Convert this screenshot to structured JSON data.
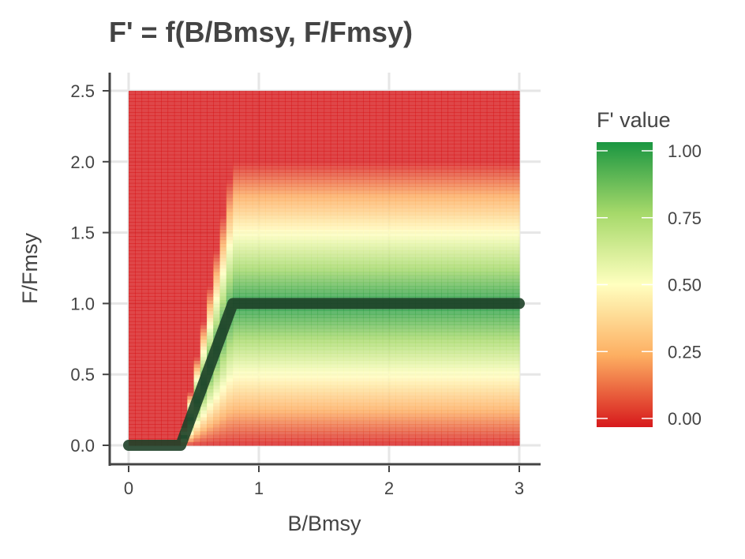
{
  "chart_data": {
    "type": "heatmap",
    "title": "F' = f(B/Bmsy, F/Fmsy)",
    "xlabel": "B/Bmsy",
    "ylabel": "F/Fmsy",
    "xlim": [
      0,
      3
    ],
    "ylim": [
      0,
      2.5
    ],
    "x_ticks": [
      "0",
      "1",
      "2",
      "3"
    ],
    "x_tick_values": [
      0,
      1,
      2,
      3
    ],
    "y_ticks": [
      "0.0",
      "0.5",
      "1.0",
      "1.5",
      "2.0",
      "2.5"
    ],
    "y_tick_values": [
      0,
      0.5,
      1,
      1.5,
      2,
      2.5
    ],
    "grid": true,
    "fill_value": "F' value",
    "legend": {
      "title": "F' value",
      "position": "right",
      "ticks": [
        "0.00",
        "0.25",
        "0.50",
        "0.75",
        "1.00"
      ],
      "tick_values": [
        0,
        0.25,
        0.5,
        0.75,
        1
      ],
      "colors": [
        "#d7191c",
        "#fdae61",
        "#ffffbf",
        "#a6d96a",
        "#1a9641"
      ]
    },
    "surface": {
      "description_rule": "F' = max(0, 1 - |y - target(x)| / target(x))",
      "target_line": [
        {
          "x": 0,
          "y": 0
        },
        {
          "x": 0.4,
          "y": 0
        },
        {
          "x": 0.8,
          "y": 1
        },
        {
          "x": 3,
          "y": 1
        }
      ]
    },
    "series": [
      {
        "type": "line",
        "x": [
          0,
          0.4,
          0.8,
          3
        ],
        "y": [
          0,
          0,
          1,
          1
        ],
        "color": "#1e4028"
      }
    ]
  }
}
